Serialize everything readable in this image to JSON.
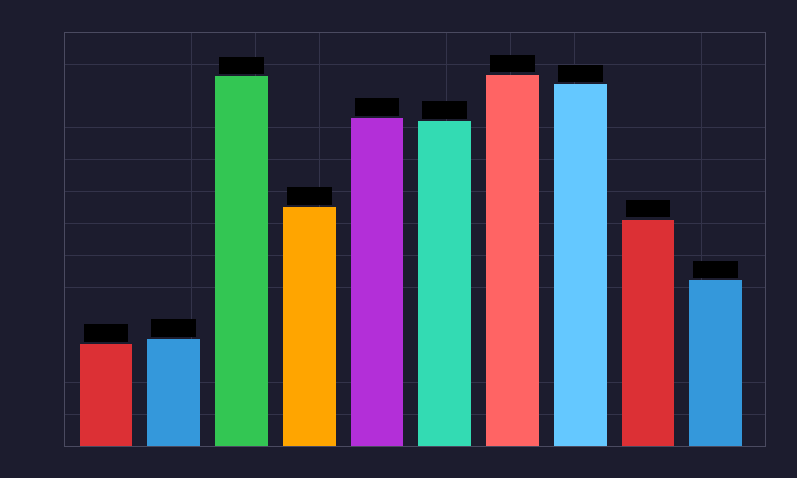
{
  "chart_data": {
    "type": "bar",
    "categories": [
      null,
      null,
      null,
      null,
      null,
      null,
      null,
      null,
      null,
      null
    ],
    "values": [
      3.2,
      3.35,
      11.6,
      7.5,
      10.3,
      10.2,
      11.65,
      11.35,
      7.1,
      5.2
    ],
    "colors": [
      "#dc3035",
      "#3498db",
      "#33c653",
      "#ffa500",
      "#b32fd8",
      "#33dbb3",
      "#ff6464",
      "#64c8ff",
      "#dc3035",
      "#3498db"
    ],
    "ylim": [
      0,
      13
    ],
    "yticks": [
      0,
      1,
      2,
      3,
      4,
      5,
      6,
      7,
      8,
      9,
      10,
      11,
      12,
      13
    ],
    "grid": true
  }
}
